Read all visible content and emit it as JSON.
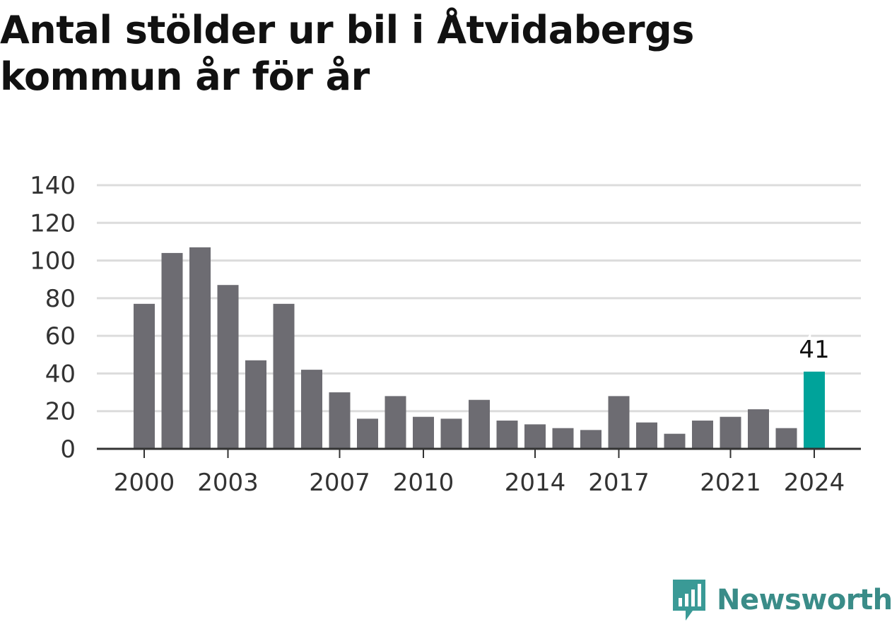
{
  "title": "Antal stölder ur bil i Åtvidabergs kommun år för år",
  "brand": {
    "name": "Newsworthy",
    "icon": "newsworthy-logo-icon",
    "color": "#3a9a96"
  },
  "colors": {
    "bar": "#6d6c72",
    "highlight": "#00a39a",
    "grid": "#dcdcdc",
    "axis": "#333333"
  },
  "chart_data": {
    "type": "bar",
    "title": "Antal stölder ur bil i Åtvidabergs kommun år för år",
    "xlabel": "",
    "ylabel": "",
    "categories": [
      2000,
      2001,
      2002,
      2003,
      2004,
      2005,
      2006,
      2007,
      2008,
      2009,
      2010,
      2011,
      2012,
      2013,
      2014,
      2015,
      2016,
      2017,
      2018,
      2019,
      2020,
      2021,
      2022,
      2023,
      2024
    ],
    "values": [
      77,
      104,
      107,
      87,
      47,
      77,
      42,
      30,
      16,
      28,
      17,
      16,
      26,
      15,
      13,
      11,
      10,
      28,
      14,
      8,
      15,
      17,
      21,
      11,
      41
    ],
    "x_tick_labels": [
      "2000",
      "2003",
      "2007",
      "2010",
      "2014",
      "2017",
      "2021",
      "2024"
    ],
    "y_ticks": [
      0,
      20,
      40,
      60,
      80,
      100,
      120,
      140
    ],
    "ylim": [
      0,
      140
    ],
    "grid": true,
    "highlight_category": 2024,
    "highlight_label": "41"
  }
}
